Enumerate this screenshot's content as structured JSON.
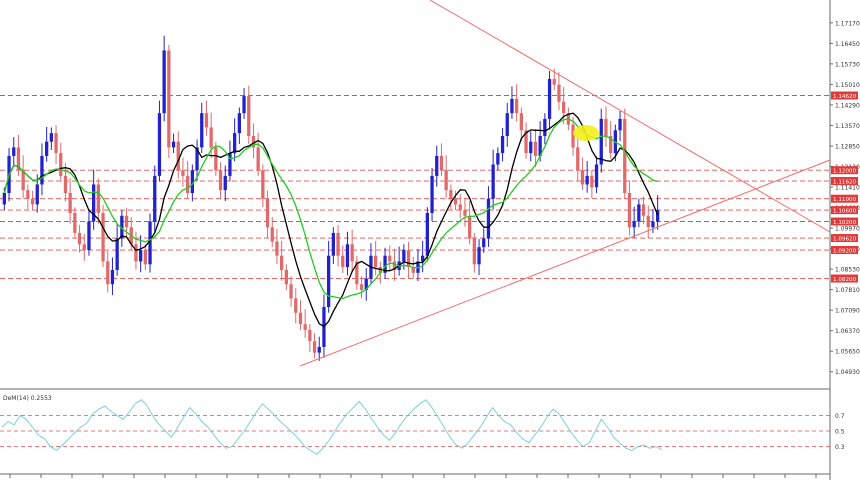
{
  "chart_data": {
    "type": "candlestick",
    "title": "",
    "xlabel": "",
    "ylabel": "",
    "ylim": [
      1.045,
      1.179
    ],
    "price_ticks": [
      "1.17170",
      "1.16450",
      "1.15730",
      "1.15010",
      "1.14290",
      "1.13570",
      "1.12850",
      "1.12130",
      "1.11410",
      "1.10690",
      "1.09970",
      "1.09250",
      "1.08530",
      "1.07810",
      "1.07090",
      "1.06370",
      "1.05650",
      "1.04930"
    ],
    "resistance_levels": [
      {
        "label": "1.14620",
        "value": 1.1462
      },
      {
        "label": "1.12000",
        "value": 1.12
      },
      {
        "label": "1.11620",
        "value": 1.1162
      },
      {
        "label": "1.11000",
        "value": 1.11
      },
      {
        "label": "1.10600",
        "value": 1.106
      },
      {
        "label": "1.10200",
        "value": 1.102
      },
      {
        "label": "1.09620",
        "value": 1.0962
      },
      {
        "label": "1.09200",
        "value": 1.092
      },
      {
        "label": "1.08200",
        "value": 1.082
      }
    ],
    "candles_close": [
      1.112,
      1.125,
      1.128,
      1.12,
      1.113,
      1.11,
      1.108,
      1.115,
      1.125,
      1.13,
      1.133,
      1.126,
      1.118,
      1.112,
      1.105,
      1.098,
      1.094,
      1.092,
      1.102,
      1.115,
      1.105,
      1.088,
      1.08,
      1.085,
      1.096,
      1.104,
      1.1,
      1.094,
      1.088,
      1.092,
      1.087,
      1.102,
      1.118,
      1.14,
      1.162,
      1.128,
      1.13,
      1.12,
      1.118,
      1.112,
      1.12,
      1.128,
      1.14,
      1.135,
      1.128,
      1.12,
      1.113,
      1.118,
      1.126,
      1.133,
      1.14,
      1.146,
      1.132,
      1.128,
      1.12,
      1.11,
      1.1,
      1.095,
      1.09,
      1.085,
      1.08,
      1.075,
      1.07,
      1.066,
      1.064,
      1.06,
      1.056,
      1.058,
      1.072,
      1.09,
      1.098,
      1.09,
      1.086,
      1.094,
      1.088,
      1.08,
      1.078,
      1.082,
      1.09,
      1.086,
      1.084,
      1.09,
      1.088,
      1.085,
      1.088,
      1.092,
      1.086,
      1.084,
      1.088,
      1.09,
      1.105,
      1.118,
      1.125,
      1.12,
      1.113,
      1.11,
      1.108,
      1.106,
      1.104,
      1.096,
      1.087,
      1.093,
      1.096,
      1.11,
      1.122,
      1.126,
      1.132,
      1.14,
      1.145,
      1.14,
      1.134,
      1.126,
      1.13,
      1.125,
      1.132,
      1.138,
      1.152,
      1.15,
      1.144,
      1.14,
      1.136,
      1.128,
      1.12,
      1.115,
      1.118,
      1.114,
      1.122,
      1.138,
      1.132,
      1.126,
      1.134,
      1.138,
      1.112,
      1.1,
      1.102,
      1.108,
      1.104,
      1.1,
      1.102,
      1.106
    ],
    "moving_averages": [
      {
        "color": "#000000"
      },
      {
        "color": "#22cc22"
      }
    ],
    "trendlines": [
      {
        "color": "#f07070"
      }
    ],
    "indicator": {
      "label": "DeM(14) 0.2553",
      "levels": [
        0.7,
        0.5,
        0.3
      ],
      "level_labels": [
        "0.7",
        "0.5",
        "0.3"
      ],
      "ylim": [
        0,
        1
      ],
      "values": [
        0.55,
        0.62,
        0.58,
        0.7,
        0.65,
        0.55,
        0.45,
        0.4,
        0.3,
        0.25,
        0.32,
        0.4,
        0.48,
        0.55,
        0.6,
        0.72,
        0.78,
        0.82,
        0.75,
        0.7,
        0.65,
        0.74,
        0.85,
        0.9,
        0.82,
        0.68,
        0.58,
        0.5,
        0.42,
        0.55,
        0.68,
        0.8,
        0.72,
        0.62,
        0.55,
        0.45,
        0.35,
        0.28,
        0.3,
        0.4,
        0.5,
        0.62,
        0.74,
        0.85,
        0.78,
        0.7,
        0.62,
        0.55,
        0.48,
        0.4,
        0.3,
        0.25,
        0.2,
        0.28,
        0.38,
        0.5,
        0.62,
        0.72,
        0.8,
        0.88,
        0.78,
        0.66,
        0.55,
        0.45,
        0.38,
        0.48,
        0.6,
        0.7,
        0.78,
        0.85,
        0.9,
        0.8,
        0.68,
        0.55,
        0.42,
        0.32,
        0.28,
        0.35,
        0.45,
        0.55,
        0.68,
        0.8,
        0.7,
        0.62,
        0.58,
        0.48,
        0.4,
        0.35,
        0.45,
        0.55,
        0.68,
        0.78,
        0.72,
        0.6,
        0.48,
        0.38,
        0.3,
        0.35,
        0.5,
        0.65,
        0.55,
        0.42,
        0.35,
        0.28,
        0.25,
        0.3,
        0.32,
        0.28,
        0.3,
        0.26
      ]
    },
    "colors": {
      "up": "#2222cc",
      "down": "#e06a6a",
      "level_line": "#e05050",
      "level_label_bg": "#e03a3a",
      "indicator_line": "#7ed0d8",
      "highlight": "#f2ef1a"
    },
    "grid": false
  }
}
